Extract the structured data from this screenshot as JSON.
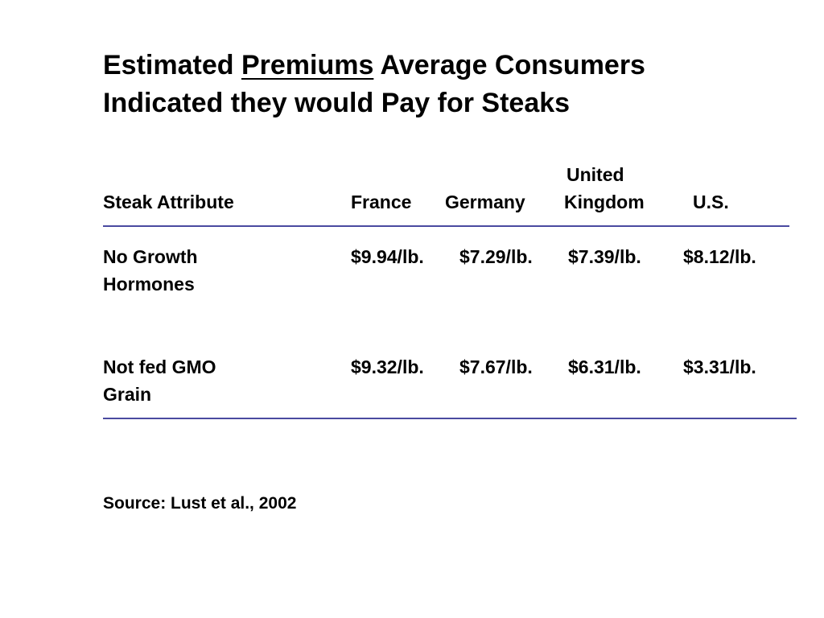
{
  "title": {
    "before": "Estimated ",
    "emphasis": "Premiums",
    "after": " Average Consumers",
    "line2": "Indicated they would Pay for Steaks"
  },
  "chart_data": {
    "type": "table",
    "columns": [
      {
        "label": "Steak Attribute"
      },
      {
        "label": "France"
      },
      {
        "label": "Germany"
      },
      {
        "label_line1": "United",
        "label_line2": "Kingdom"
      },
      {
        "label": "U.S."
      }
    ],
    "rows": [
      {
        "attribute_line1": "No Growth",
        "attribute_line2": "Hormones",
        "values": [
          "$9.94/lb.",
          "$7.29/lb.",
          "$7.39/lb.",
          "$8.12/lb."
        ]
      },
      {
        "attribute_line1": "Not fed GMO",
        "attribute_line2": "Grain",
        "values": [
          "$9.32/lb.",
          "$7.67/lb.",
          "$6.31/lb.",
          "$3.31/lb."
        ]
      }
    ]
  },
  "source": "Source: Lust et al., 2002",
  "colors": {
    "text": "#000000",
    "rule": "#4a4aa0",
    "background": "#ffffff"
  }
}
